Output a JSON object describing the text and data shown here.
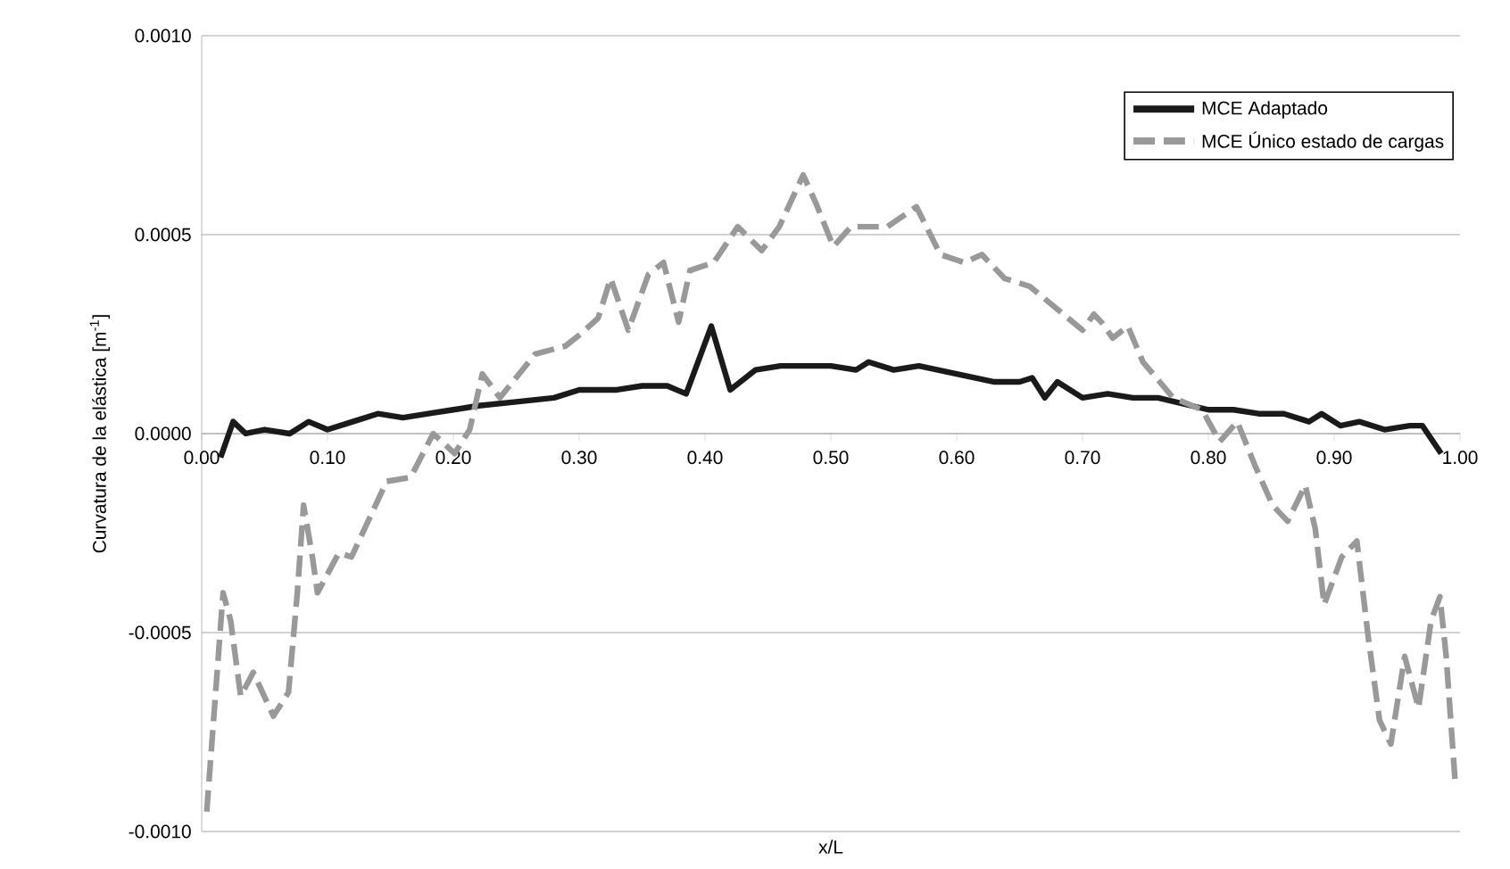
{
  "chart_data": {
    "type": "line",
    "xlabel": "x/L",
    "ylabel": "Curvatura de la elástica [m$^{-1}$]",
    "xlim": [
      0,
      1
    ],
    "ylim": [
      -0.001,
      0.001
    ],
    "xticks": [
      {
        "value": 0,
        "label": "0.00"
      },
      {
        "value": 0.1,
        "label": "0.10"
      },
      {
        "value": 0.2,
        "label": "0.20"
      },
      {
        "value": 0.3,
        "label": "0.30"
      },
      {
        "value": 0.4,
        "label": "0.40"
      },
      {
        "value": 0.5,
        "label": "0.50"
      },
      {
        "value": 0.6,
        "label": "0.60"
      },
      {
        "value": 0.7,
        "label": "0.70"
      },
      {
        "value": 0.8,
        "label": "0.80"
      },
      {
        "value": 0.9,
        "label": "0.90"
      },
      {
        "value": 1,
        "label": "1.00"
      }
    ],
    "yticks": [
      {
        "value": -0.001,
        "label": "-0.0010"
      },
      {
        "value": -0.0005,
        "label": "-0.0005"
      },
      {
        "value": 0,
        "label": "0.0000"
      },
      {
        "value": 0.0005,
        "label": "0.0005"
      },
      {
        "value": 0.001,
        "label": "0.0010"
      }
    ],
    "grid": "y",
    "legend": "top right",
    "series": [
      {
        "name": "MCE Adaptado",
        "color": "#1a1a1a",
        "line_style": "solid",
        "x": [
          0.015,
          0.025,
          0.035,
          0.05,
          0.07,
          0.085,
          0.1,
          0.12,
          0.14,
          0.16,
          0.18,
          0.2,
          0.22,
          0.25,
          0.28,
          0.3,
          0.33,
          0.35,
          0.37,
          0.385,
          0.405,
          0.42,
          0.44,
          0.46,
          0.5,
          0.52,
          0.53,
          0.55,
          0.57,
          0.6,
          0.63,
          0.65,
          0.66,
          0.67,
          0.68,
          0.7,
          0.72,
          0.74,
          0.76,
          0.8,
          0.82,
          0.84,
          0.86,
          0.88,
          0.89,
          0.905,
          0.92,
          0.94,
          0.96,
          0.97,
          0.985
        ],
        "values": [
          -6e-05,
          3e-05,
          0.0,
          1e-05,
          0.0,
          3e-05,
          1e-05,
          3e-05,
          5e-05,
          4e-05,
          5e-05,
          6e-05,
          7e-05,
          8e-05,
          9e-05,
          0.00011,
          0.00011,
          0.00012,
          0.00012,
          0.0001,
          0.00027,
          0.00011,
          0.00016,
          0.00017,
          0.00017,
          0.00016,
          0.00018,
          0.00016,
          0.00017,
          0.00015,
          0.00013,
          0.00013,
          0.00014,
          9e-05,
          0.00013,
          9e-05,
          0.0001,
          9e-05,
          9e-05,
          6e-05,
          6e-05,
          5e-05,
          5e-05,
          3e-05,
          5e-05,
          2e-05,
          3e-05,
          1e-05,
          2e-05,
          2e-05,
          -5e-05
        ]
      },
      {
        "name": "MCE Único estado de cargas",
        "color": "#999999",
        "line_style": "dashed",
        "x": [
          0.004,
          0.017,
          0.023,
          0.031,
          0.041,
          0.057,
          0.069,
          0.076,
          0.081,
          0.088,
          0.092,
          0.109,
          0.119,
          0.147,
          0.166,
          0.184,
          0.201,
          0.213,
          0.223,
          0.237,
          0.265,
          0.289,
          0.301,
          0.315,
          0.325,
          0.339,
          0.355,
          0.367,
          0.379,
          0.388,
          0.407,
          0.426,
          0.445,
          0.459,
          0.478,
          0.488,
          0.502,
          0.516,
          0.545,
          0.568,
          0.587,
          0.606,
          0.62,
          0.638,
          0.658,
          0.681,
          0.7,
          0.709,
          0.715,
          0.724,
          0.736,
          0.748,
          0.772,
          0.795,
          0.809,
          0.823,
          0.837,
          0.851,
          0.863,
          0.877,
          0.885,
          0.892,
          0.906,
          0.918,
          0.927,
          0.936,
          0.945,
          0.956,
          0.967,
          0.977,
          0.984,
          0.989,
          0.996
        ],
        "values": [
          -0.00095,
          -0.0004,
          -0.00047,
          -0.00066,
          -0.0006,
          -0.00071,
          -0.00065,
          -0.0004,
          -0.00018,
          -0.00031,
          -0.0004,
          -0.0003,
          -0.00031,
          -0.00012,
          -0.00011,
          0.0,
          -5e-05,
          1e-05,
          0.00015,
          9e-05,
          0.0002,
          0.00022,
          0.00025,
          0.00029,
          0.00039,
          0.00026,
          0.0004,
          0.00043,
          0.00028,
          0.00041,
          0.00043,
          0.00052,
          0.00046,
          0.00052,
          0.00065,
          0.00058,
          0.00047,
          0.00052,
          0.00052,
          0.00057,
          0.00045,
          0.00043,
          0.00045,
          0.00039,
          0.00037,
          0.00031,
          0.00026,
          0.0003,
          0.00028,
          0.00024,
          0.00027,
          0.00018,
          9e-05,
          6e-05,
          -2e-05,
          3e-05,
          -8e-05,
          -0.00018,
          -0.00022,
          -0.00013,
          -0.00024,
          -0.00043,
          -0.00031,
          -0.00027,
          -0.00051,
          -0.00072,
          -0.00078,
          -0.00056,
          -0.00069,
          -0.00047,
          -0.00041,
          -0.00056,
          -0.00087
        ]
      }
    ]
  }
}
